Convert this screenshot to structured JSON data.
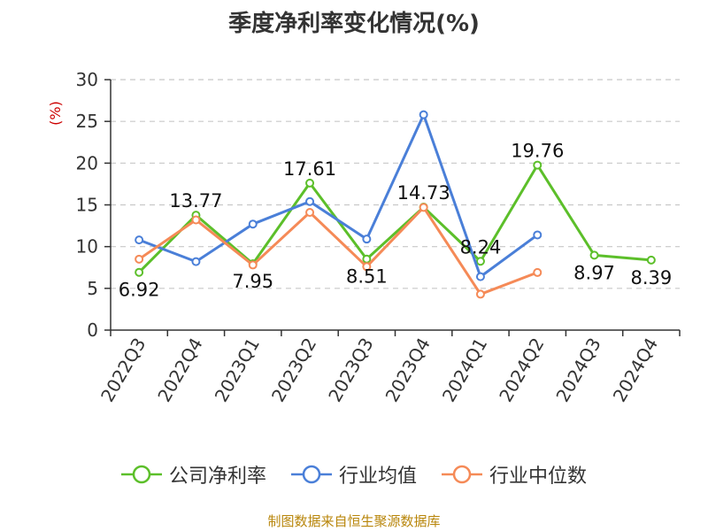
{
  "source": "制图数据来自恒生聚源数据库",
  "colors": {
    "company": "#5cbf2a",
    "industry_avg": "#4a7fd8",
    "industry_median": "#f58a57",
    "grid": "#c8c8c8",
    "axis": "#333333",
    "ylabel": "#cc0000"
  },
  "chart_data": {
    "type": "line",
    "title": "季度净利率变化情况(%)",
    "ylabel": "(%)",
    "xlabel": "",
    "ylim": [
      0,
      30
    ],
    "yticks": [
      0,
      5,
      10,
      15,
      20,
      25,
      30
    ],
    "grid": true,
    "legend_position": "bottom",
    "categories": [
      "2022Q3",
      "2022Q4",
      "2023Q1",
      "2023Q2",
      "2023Q3",
      "2023Q4",
      "2024Q1",
      "2024Q2",
      "2024Q3",
      "2024Q4"
    ],
    "series": [
      {
        "key": "company",
        "name": "公司净利率",
        "values": [
          6.92,
          13.77,
          7.95,
          17.61,
          8.51,
          14.73,
          8.24,
          19.76,
          8.97,
          8.39
        ],
        "labels": [
          "6.92",
          "13.77",
          "7.95",
          "17.61",
          "8.51",
          "14.73",
          "8.24",
          "19.76",
          "8.97",
          "8.39"
        ]
      },
      {
        "key": "industry_avg",
        "name": "行业均值",
        "values": [
          10.8,
          8.2,
          12.7,
          15.4,
          10.9,
          25.8,
          6.4,
          11.4,
          null,
          null
        ]
      },
      {
        "key": "industry_median",
        "name": "行业中位数",
        "values": [
          8.5,
          13.2,
          7.8,
          14.1,
          7.6,
          14.7,
          4.3,
          6.9,
          null,
          null
        ]
      }
    ]
  }
}
